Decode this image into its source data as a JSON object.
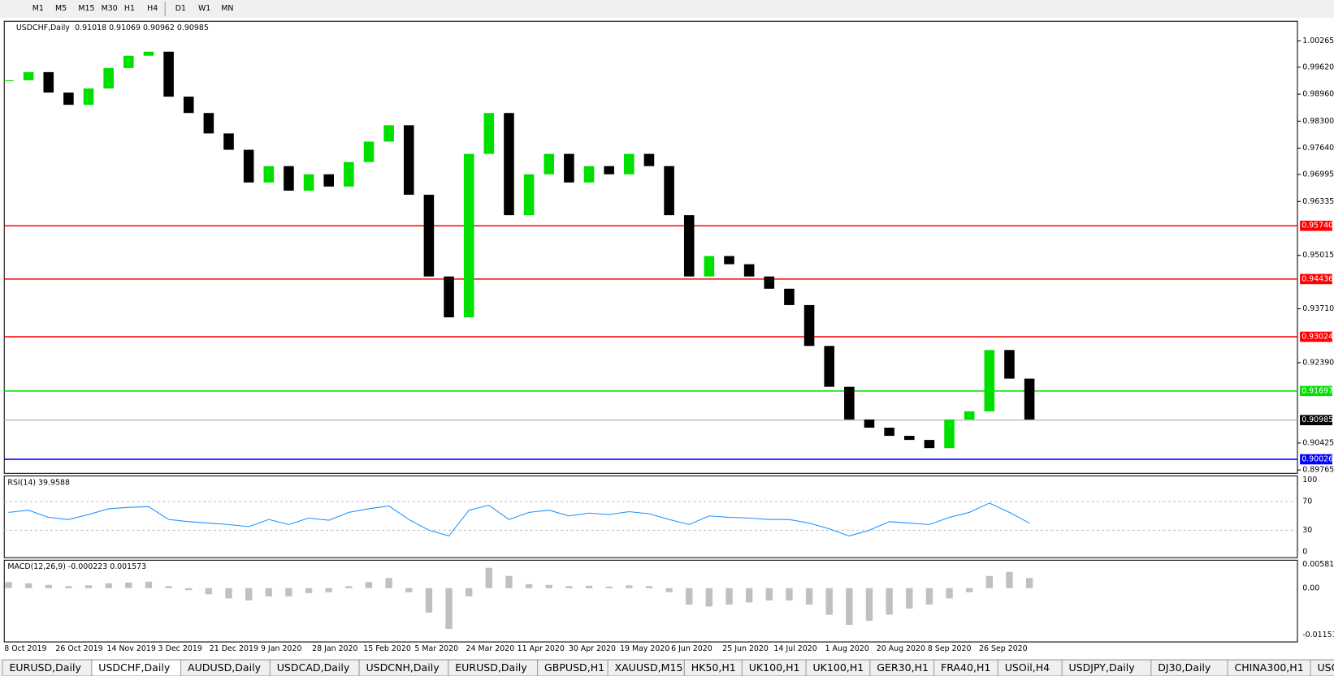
{
  "toolbar": {
    "timeframes": [
      "M1",
      "M5",
      "M15",
      "M30",
      "H1",
      "H4",
      "D1",
      "W1",
      "MN"
    ]
  },
  "header": {
    "title": "USDCHF,Daily",
    "ohlc": "0.91018 0.91069 0.90962 0.90985"
  },
  "price_axis": {
    "ylim": [
      0.89765,
      1.00265
    ],
    "ticks": [
      1.00265,
      {
        "value": 0.9962,
        "label": "0.99620"
      },
      {
        "value": 0.9896,
        "label": "0.98960"
      },
      {
        "value": 0.983,
        "label": "0.98300"
      },
      {
        "value": 0.9764,
        "label": "0.97640"
      },
      0.96995,
      0.96335,
      0.95015,
      {
        "value": 0.9371,
        "label": "0.93710"
      },
      {
        "value": 0.9239,
        "label": "0.92390"
      },
      0.90425,
      0.89765
    ]
  },
  "levels": [
    {
      "value": 0.9574,
      "label": "0.95740",
      "color": "#ff0000"
    },
    {
      "value": 0.94436,
      "label": "0.94436",
      "color": "#ff0000"
    },
    {
      "value": 0.93024,
      "label": "0.93024",
      "color": "#ff0000"
    },
    {
      "value": 0.91697,
      "label": "0.91697",
      "color": "#00e000"
    },
    {
      "value": 0.90026,
      "label": "0.90026",
      "color": "#0000ff"
    }
  ],
  "current_price": {
    "value": 0.90985,
    "label": "0.90985"
  },
  "price": {
    "closes": [
      0.993,
      0.995,
      0.99,
      0.987,
      0.991,
      0.996,
      0.999,
      1.0,
      0.989,
      0.985,
      0.98,
      0.976,
      0.968,
      0.972,
      0.966,
      0.97,
      0.967,
      0.973,
      0.978,
      0.982,
      0.965,
      0.945,
      0.935,
      0.975,
      0.985,
      0.96,
      0.97,
      0.975,
      0.968,
      0.972,
      0.97,
      0.975,
      0.972,
      0.96,
      0.945,
      0.95,
      0.948,
      0.945,
      0.942,
      0.938,
      0.928,
      0.918,
      0.91,
      0.908,
      0.906,
      0.905,
      0.903,
      0.91,
      0.912,
      0.927,
      0.92,
      0.91
    ]
  },
  "rsi": {
    "title": "RSI(14) 39.9588",
    "ylim": [
      0,
      100
    ],
    "ticks": [
      100,
      70,
      30,
      0
    ],
    "values": [
      55,
      58,
      48,
      45,
      52,
      60,
      62,
      63,
      45,
      42,
      40,
      38,
      35,
      45,
      38,
      47,
      44,
      55,
      60,
      64,
      45,
      30,
      22,
      58,
      65,
      45,
      55,
      58,
      50,
      54,
      52,
      56,
      53,
      45,
      38,
      50,
      48,
      47,
      45,
      45,
      40,
      32,
      22,
      30,
      42,
      40,
      38,
      48,
      55,
      68,
      55,
      40
    ]
  },
  "macd": {
    "title": "MACD(12,26,9) -0.000223 0.001573",
    "ylim": [
      -0.011514,
      0.005818
    ],
    "ticks": [
      0.005818,
      {
        "value": 0,
        "label": "0.00"
      },
      -0.011514
    ],
    "values": [
      0.0015,
      0.0012,
      0.0008,
      0.0005,
      0.0007,
      0.0012,
      0.0014,
      0.0016,
      0.0005,
      -0.0005,
      -0.0015,
      -0.0025,
      -0.003,
      -0.002,
      -0.002,
      -0.0012,
      -0.001,
      0.0005,
      0.0015,
      0.0025,
      -0.001,
      -0.006,
      -0.01,
      -0.002,
      0.005,
      0.003,
      0.001,
      0.0008,
      0.0005,
      0.0006,
      0.0004,
      0.0007,
      0.0005,
      -0.001,
      -0.004,
      -0.0045,
      -0.004,
      -0.0035,
      -0.003,
      -0.003,
      -0.004,
      -0.0065,
      -0.009,
      -0.008,
      -0.0065,
      -0.005,
      -0.004,
      -0.0025,
      -0.001,
      0.003,
      0.004,
      0.0025
    ]
  },
  "dates": [
    "8 Oct 2019",
    "26 Oct 2019",
    "14 Nov 2019",
    "3 Dec 2019",
    "21 Dec 2019",
    "9 Jan 2020",
    "28 Jan 2020",
    "15 Feb 2020",
    "5 Mar 2020",
    "24 Mar 2020",
    "11 Apr 2020",
    "30 Apr 2020",
    "19 May 2020",
    "6 Jun 2020",
    "25 Jun 2020",
    "14 Jul 2020",
    "1 Aug 2020",
    "20 Aug 2020",
    "8 Sep 2020",
    "26 Sep 2020"
  ],
  "tabs": {
    "items": [
      "EURUSD,Daily",
      "USDCHF,Daily",
      "AUDUSD,Daily",
      "USDCAD,Daily",
      "USDCNH,Daily",
      "EURUSD,Daily",
      "GBPUSD,H1",
      "XAUUSD,M15",
      "HK50,H1",
      "UK100,H1",
      "UK100,H1",
      "GER30,H1",
      "FRA40,H1",
      "USOil,H4",
      "USDJPY,Daily",
      "DJ30,Daily",
      "CHINA300,H1",
      "USOil,H"
    ],
    "active": 1
  }
}
